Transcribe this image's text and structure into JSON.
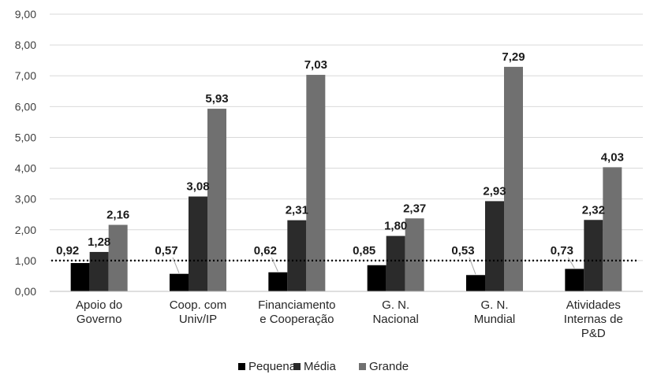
{
  "chart_data": {
    "type": "bar",
    "categories": [
      [
        "Apoio do",
        "Governo"
      ],
      [
        "Coop. com",
        "Univ/IP"
      ],
      [
        "Financiamento",
        "e Cooperação"
      ],
      [
        "G. N.",
        "Nacional"
      ],
      [
        "G. N.",
        "Mundial"
      ],
      [
        "Atividades",
        "Internas de",
        "P&D"
      ]
    ],
    "series": [
      {
        "name": "Pequena",
        "color": "#000000",
        "values": [
          0.92,
          0.57,
          0.62,
          0.85,
          0.53,
          0.73
        ],
        "labels": [
          "0,92",
          "0,57",
          "0,62",
          "0,85",
          "0,53",
          "0,73"
        ]
      },
      {
        "name": "Média",
        "color": "#2b2b2b",
        "values": [
          1.28,
          3.08,
          2.31,
          1.8,
          2.93,
          2.32
        ],
        "labels": [
          "1,28",
          "3,08",
          "2,31",
          "1,80",
          "2,93",
          "2,32"
        ]
      },
      {
        "name": "Grande",
        "color": "#707070",
        "values": [
          2.16,
          5.93,
          7.03,
          2.37,
          7.29,
          4.03
        ],
        "labels": [
          "2,16",
          "5,93",
          "7,03",
          "2,37",
          "7,29",
          "4,03"
        ]
      }
    ],
    "y_ticks": [
      "0,00",
      "1,00",
      "2,00",
      "3,00",
      "4,00",
      "5,00",
      "6,00",
      "7,00",
      "8,00",
      "9,00"
    ],
    "ylim": [
      0,
      9
    ],
    "reference_line": {
      "value": 1.0,
      "style": "dotted"
    },
    "grid": true,
    "legend_position": "bottom",
    "title": "",
    "xlabel": "",
    "ylabel": ""
  }
}
